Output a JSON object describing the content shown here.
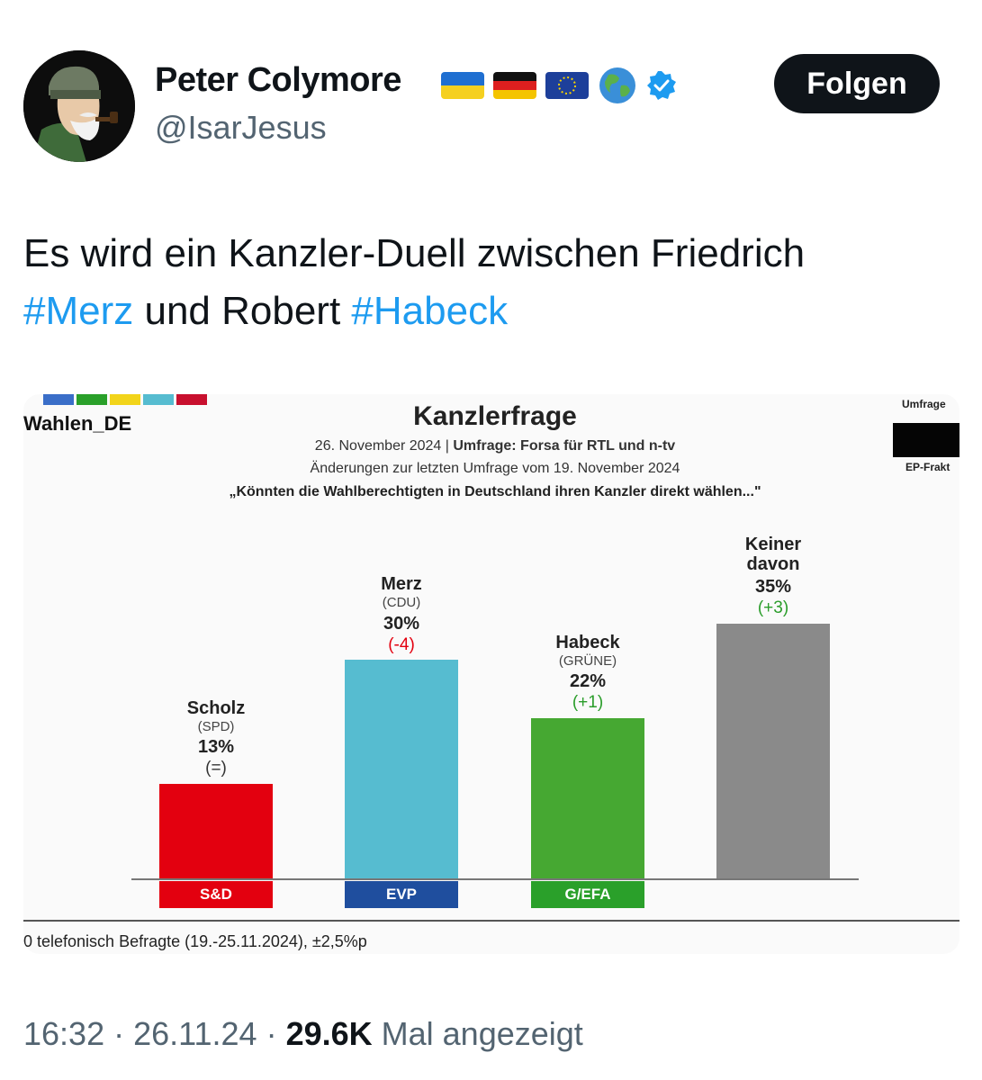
{
  "user": {
    "name": "Peter Colymore",
    "handle": "@IsarJesus",
    "flags": [
      "ukraine-flag-icon",
      "germany-flag-icon",
      "eu-flag-icon",
      "globe-icon"
    ],
    "follow_label": "Folgen"
  },
  "tweet": {
    "text_before": "Es wird ein Kanzler-Duell zwischen Friedrich",
    "hashtag1": "#Merz",
    "text_middle": " und Robert ",
    "hashtag2": "#Habeck"
  },
  "media": {
    "logo": "Wahlen_DE",
    "side_label_top": "Umfrage",
    "side_label_bottom": "EP-Frakt",
    "footnote": "0 telefonisch Befragte (19.-25.11.2024), ±2,5%p"
  },
  "chart_data": {
    "type": "bar",
    "title": "Kanzlerfrage",
    "subtitle_date": "26. November 2024 | ",
    "subtitle_source": "Umfrage: Forsa für RTL und n-tv",
    "subtitle_changes": "Änderungen zur letzten Umfrage vom 19. November 2024",
    "question": "„Könnten die Wahlberechtigten in Deutschland ihren Kanzler direkt wählen...\"",
    "ylim": [
      0,
      40
    ],
    "categories": [
      {
        "name": "Scholz",
        "party": "(SPD)",
        "value": 13,
        "value_label": "13%",
        "change": "(=)",
        "change_color": "#333333",
        "color": "#e3000f",
        "group": "S&D",
        "group_color": "#e3000f"
      },
      {
        "name": "Merz",
        "party": "(CDU)",
        "value": 30,
        "value_label": "30%",
        "change": "(-4)",
        "change_color": "#e3000f",
        "color": "#56bcd0",
        "group": "EVP",
        "group_color": "#1f4e9e"
      },
      {
        "name": "Habeck",
        "party": "(GRÜNE)",
        "value": 22,
        "value_label": "22%",
        "change": "(+1)",
        "change_color": "#2a9d2a",
        "color": "#46a832",
        "group": "G/EFA",
        "group_color": "#2aa02a"
      },
      {
        "name": "Keiner davon",
        "party": "",
        "value": 35,
        "value_label": "35%",
        "change": "(+3)",
        "change_color": "#2a9d2a",
        "color": "#8a8a8a",
        "group": "",
        "group_color": ""
      }
    ]
  },
  "meta": {
    "time": "16:32",
    "sep1": " · ",
    "date": "26.11.24",
    "sep2": " · ",
    "views": "29.6K",
    "views_suffix": " Mal angezeigt"
  }
}
